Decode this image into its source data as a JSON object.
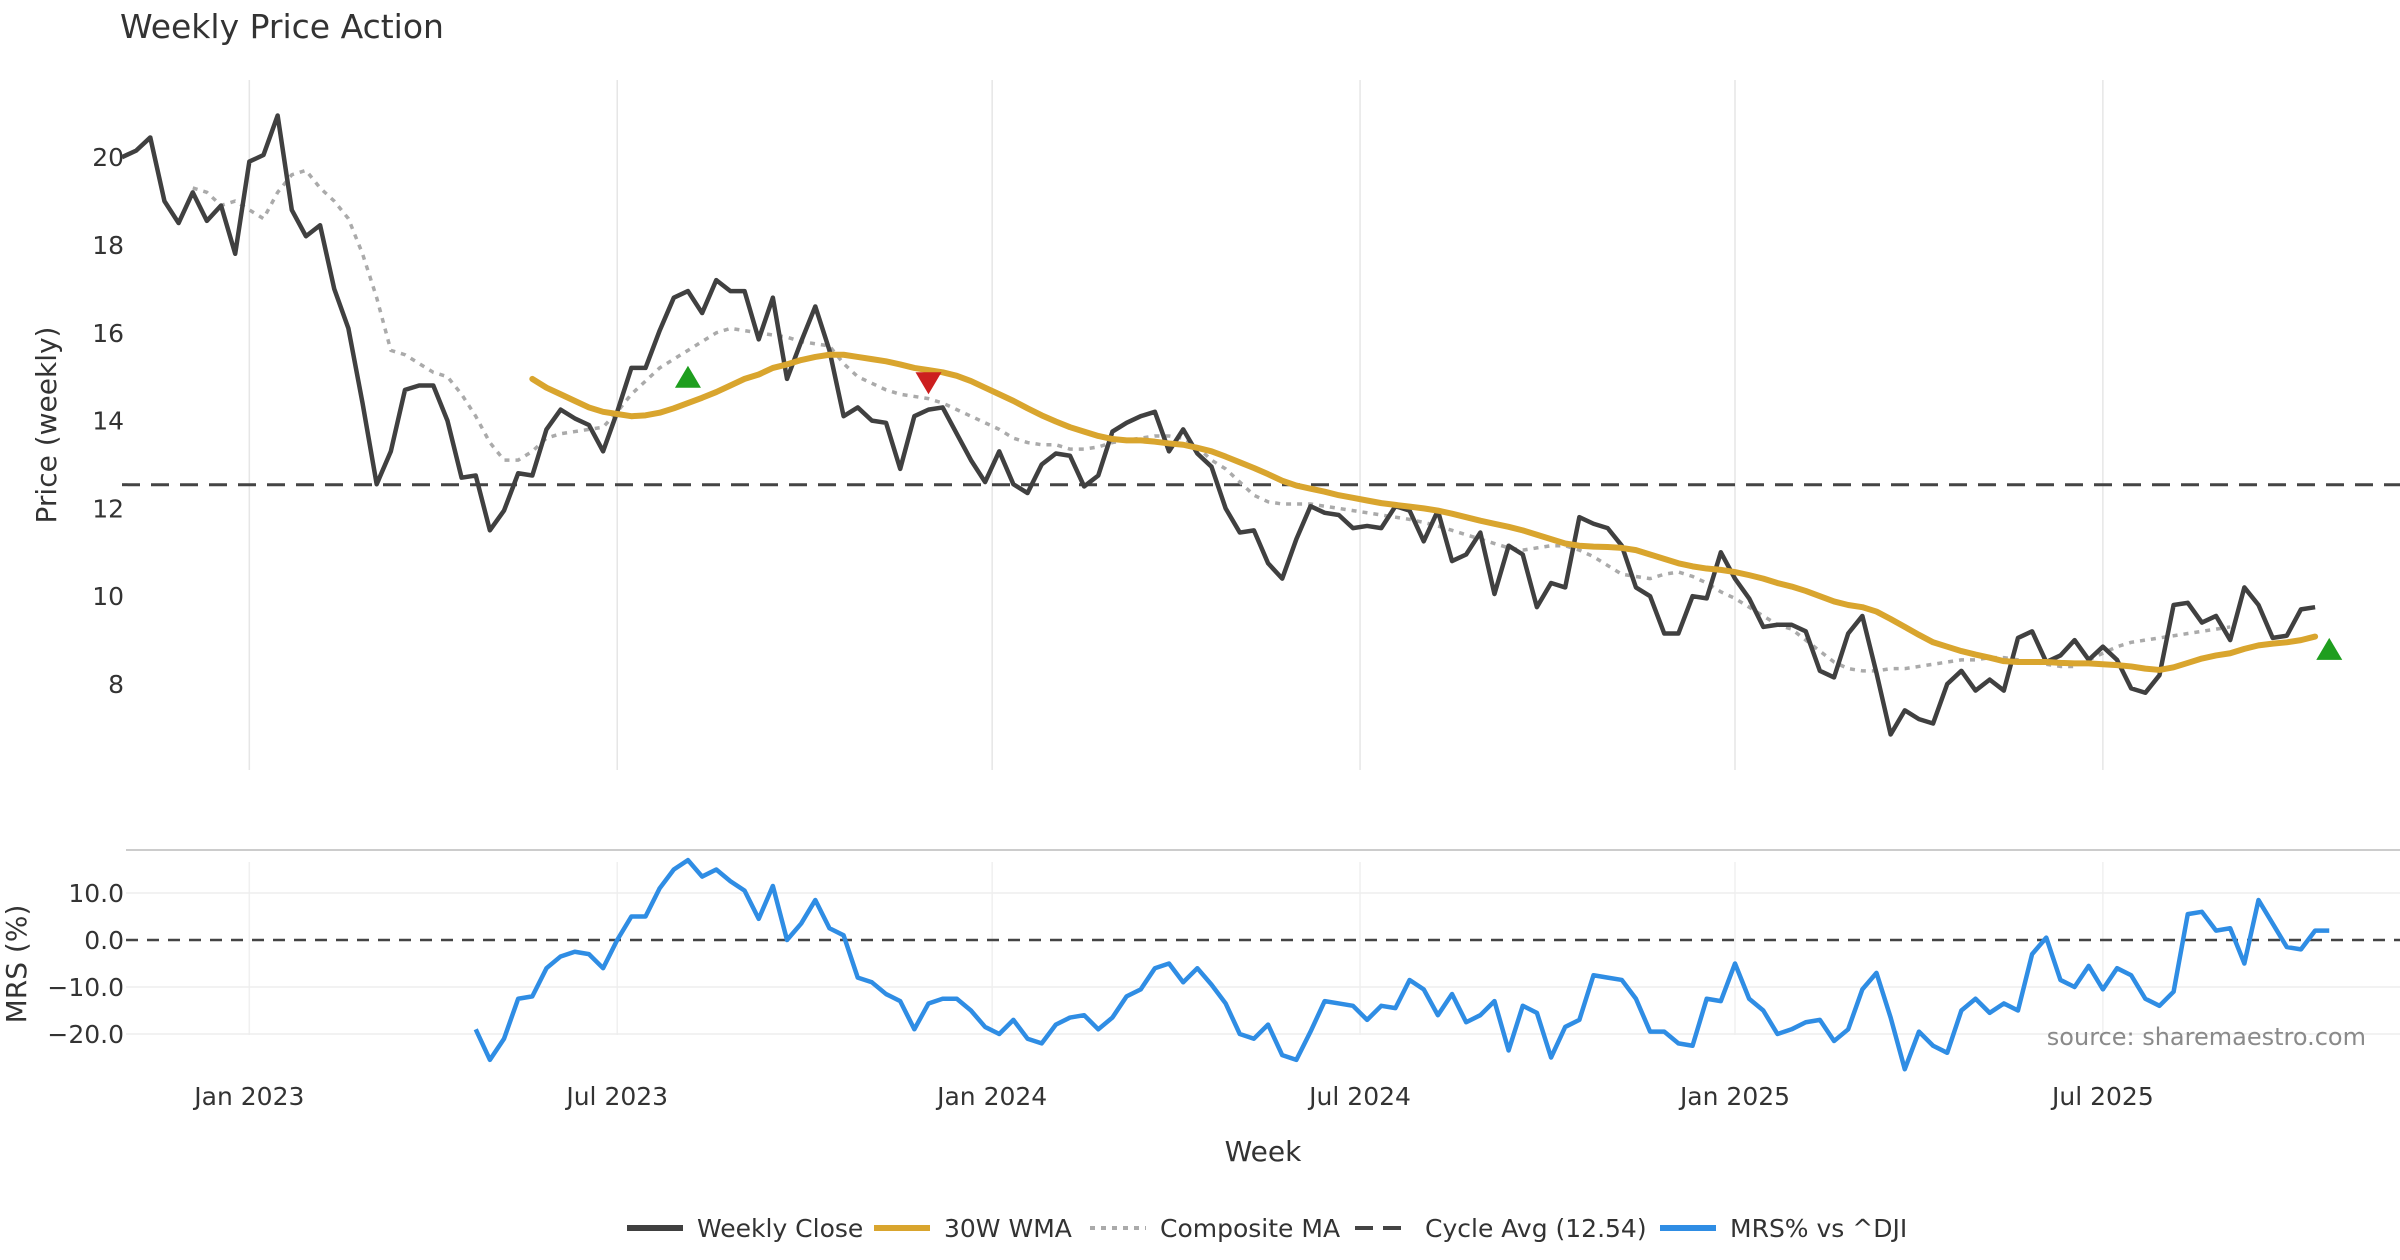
{
  "chart_data": [
    {
      "type": "line",
      "title": "Weekly Price Action",
      "ylabel": "Price (weekly)",
      "xlabel": "",
      "ylim": [
        6,
        22
      ],
      "yticks": [
        8,
        10,
        12,
        14,
        16,
        18,
        20
      ],
      "grid": "vertical",
      "series": [
        {
          "name": "Weekly Close",
          "color": "#404040",
          "start_week": 0,
          "values": [
            20.0,
            20.15,
            20.45,
            19.0,
            18.5,
            19.2,
            18.55,
            18.9,
            17.8,
            19.9,
            20.05,
            20.95,
            18.8,
            18.2,
            18.45,
            17.0,
            16.1,
            14.4,
            12.55,
            13.3,
            14.7,
            14.8,
            14.8,
            14.0,
            12.7,
            12.75,
            11.5,
            11.95,
            12.8,
            12.75,
            13.8,
            14.25,
            14.05,
            13.9,
            13.3,
            14.2,
            15.2,
            15.2,
            16.05,
            16.8,
            16.95,
            16.45,
            17.2,
            16.95,
            16.95,
            15.85,
            16.8,
            14.95,
            15.8,
            16.6,
            15.6,
            14.1,
            14.3,
            14.0,
            13.95,
            12.9,
            14.1,
            14.25,
            14.3,
            13.7,
            13.1,
            12.6,
            13.3,
            12.55,
            12.35,
            13.0,
            13.25,
            13.2,
            12.5,
            12.75,
            13.75,
            13.95,
            14.1,
            14.2,
            13.3,
            13.8,
            13.25,
            12.95,
            12.0,
            11.45,
            11.5,
            10.75,
            10.4,
            11.3,
            12.05,
            11.9,
            11.85,
            11.55,
            11.6,
            11.55,
            12.05,
            11.95,
            11.25,
            11.95,
            10.8,
            10.95,
            11.45,
            10.05,
            11.15,
            10.95,
            9.75,
            10.3,
            10.2,
            11.8,
            11.65,
            11.55,
            11.15,
            10.2,
            10.0,
            9.15,
            9.15,
            10.0,
            9.95,
            11.0,
            10.4,
            9.95,
            9.3,
            9.35,
            9.35,
            9.2,
            8.3,
            8.15,
            9.15,
            9.55,
            8.25,
            6.85,
            7.4,
            7.2,
            7.1,
            8.0,
            8.3,
            7.85,
            8.1,
            7.85,
            9.05,
            9.2,
            8.5,
            8.65,
            9.0,
            8.55,
            8.85,
            8.55,
            7.9,
            7.8,
            8.2,
            9.8,
            9.85,
            9.4,
            9.55,
            9.0,
            10.2,
            9.8,
            9.05,
            9.1,
            9.7,
            9.75
          ]
        },
        {
          "name": "30W WMA",
          "color": "#d9a52e",
          "start_week": 29,
          "values": [
            14.95,
            14.75,
            14.6,
            14.45,
            14.3,
            14.2,
            14.15,
            14.1,
            14.12,
            14.18,
            14.28,
            14.4,
            14.52,
            14.65,
            14.8,
            14.95,
            15.05,
            15.2,
            15.28,
            15.38,
            15.45,
            15.5,
            15.5,
            15.45,
            15.4,
            15.35,
            15.28,
            15.2,
            15.15,
            15.1,
            15.02,
            14.9,
            14.75,
            14.6,
            14.45,
            14.28,
            14.12,
            13.98,
            13.85,
            13.75,
            13.65,
            13.58,
            13.55,
            13.55,
            13.52,
            13.48,
            13.45,
            13.38,
            13.3,
            13.18,
            13.05,
            12.92,
            12.78,
            12.63,
            12.52,
            12.45,
            12.38,
            12.3,
            12.24,
            12.18,
            12.12,
            12.08,
            12.04,
            12.0,
            11.95,
            11.88,
            11.8,
            11.72,
            11.65,
            11.58,
            11.5,
            11.4,
            11.3,
            11.2,
            11.15,
            11.13,
            11.12,
            11.1,
            11.05,
            10.95,
            10.85,
            10.75,
            10.68,
            10.63,
            10.6,
            10.55,
            10.48,
            10.4,
            10.3,
            10.22,
            10.12,
            10.0,
            9.88,
            9.8,
            9.75,
            9.65,
            9.48,
            9.3,
            9.12,
            8.95,
            8.85,
            8.75,
            8.67,
            8.6,
            8.52,
            8.5,
            8.5,
            8.5,
            8.48,
            8.47,
            8.47,
            8.45,
            8.43,
            8.4,
            8.35,
            8.32,
            8.38,
            8.48,
            8.58,
            8.65,
            8.7,
            8.8,
            8.88,
            8.92,
            8.95,
            9.0,
            9.08
          ]
        },
        {
          "name": "Composite MA",
          "color": "#aaaaaa",
          "start_week": 5,
          "values": [
            19.3,
            19.2,
            18.9,
            19.0,
            18.8,
            18.6,
            19.2,
            19.6,
            19.7,
            19.3,
            19.0,
            18.6,
            17.8,
            16.8,
            15.6,
            15.5,
            15.3,
            15.1,
            15.0,
            14.6,
            14.1,
            13.5,
            13.1,
            13.1,
            13.3,
            13.6,
            13.7,
            13.75,
            13.8,
            13.85,
            14.2,
            14.6,
            14.9,
            15.2,
            15.4,
            15.6,
            15.8,
            16.0,
            16.1,
            16.05,
            16.0,
            15.95,
            15.9,
            15.8,
            15.75,
            15.7,
            15.3,
            15.0,
            14.85,
            14.7,
            14.6,
            14.55,
            14.5,
            14.4,
            14.25,
            14.1,
            13.95,
            13.8,
            13.6,
            13.5,
            13.45,
            13.45,
            13.35,
            13.35,
            13.4,
            13.5,
            13.55,
            13.6,
            13.65,
            13.65,
            13.6,
            13.4,
            13.1,
            12.9,
            12.6,
            12.3,
            12.15,
            12.1,
            12.1,
            12.1,
            12.05,
            12.0,
            11.95,
            11.9,
            11.85,
            11.8,
            11.75,
            11.68,
            11.6,
            11.5,
            11.4,
            11.3,
            11.2,
            11.1,
            11.05,
            11.1,
            11.15,
            11.15,
            11.05,
            10.9,
            10.7,
            10.5,
            10.45,
            10.4,
            10.5,
            10.55,
            10.45,
            10.3,
            10.1,
            9.95,
            9.75,
            9.55,
            9.35,
            9.25,
            9.0,
            8.75,
            8.5,
            8.35,
            8.3,
            8.3,
            8.35,
            8.35,
            8.4,
            8.45,
            8.5,
            8.55,
            8.55,
            8.6,
            8.6,
            8.55,
            8.5,
            8.45,
            8.4,
            8.4,
            8.55,
            8.7,
            8.85,
            8.95,
            9.0,
            9.05,
            9.1,
            9.15,
            9.2,
            9.25,
            9.3
          ]
        },
        {
          "name": "Cycle Avg (12.54)",
          "color": "#444444",
          "value": 12.54
        }
      ],
      "markers": [
        {
          "type": "buy",
          "week": 40,
          "value": 15.0,
          "color": "#1e9e1e"
        },
        {
          "type": "sell",
          "week": 57,
          "value": 14.85,
          "color": "#cc1f1f"
        },
        {
          "type": "buy",
          "week": 156,
          "value": 8.8,
          "color": "#1e9e1e"
        }
      ]
    },
    {
      "type": "line",
      "title": "",
      "ylabel": "MRS (%)",
      "xlabel": "Week",
      "ylim": [
        -30,
        20
      ],
      "yticks": [
        10.0,
        0.0,
        -10.0,
        -20.0
      ],
      "ytick_labels": [
        "10.0",
        "0.0",
        "−10.0",
        "−20.0"
      ],
      "reference_line": 0,
      "xticks": [
        {
          "label": "Jan 2023",
          "week": 9
        },
        {
          "label": "Jul 2023",
          "week": 35
        },
        {
          "label": "Jan 2024",
          "week": 61.5
        },
        {
          "label": "Jul 2024",
          "week": 87.5
        },
        {
          "label": "Jan 2025",
          "week": 114
        },
        {
          "label": "Jul 2025",
          "week": 140
        }
      ],
      "series": [
        {
          "name": "MRS% vs ^DJI",
          "color": "#2f8de4",
          "start_week": 25,
          "values": [
            -19.0,
            -25.5,
            -21.0,
            -12.5,
            -12.0,
            -6.0,
            -3.5,
            -2.5,
            -3.0,
            -6.0,
            0.0,
            5.0,
            5.0,
            11.0,
            15.0,
            17.0,
            13.5,
            15.0,
            12.5,
            10.5,
            4.5,
            11.5,
            0.0,
            3.5,
            8.5,
            2.5,
            1.0,
            -8.0,
            -9.0,
            -11.5,
            -13.0,
            -19.0,
            -13.5,
            -12.5,
            -12.5,
            -15.0,
            -18.5,
            -20.0,
            -17.0,
            -21.0,
            -22.0,
            -18.0,
            -16.5,
            -16.0,
            -19.0,
            -16.5,
            -12.0,
            -10.5,
            -6.0,
            -5.0,
            -9.0,
            -6.0,
            -9.5,
            -13.5,
            -20.0,
            -21.0,
            -18.0,
            -24.5,
            -25.5,
            -19.5,
            -13.0,
            -13.5,
            -14.0,
            -17.0,
            -14.0,
            -14.5,
            -8.5,
            -10.5,
            -16.0,
            -11.5,
            -17.5,
            -16.0,
            -13.0,
            -23.5,
            -14.0,
            -15.5,
            -25.0,
            -18.5,
            -17.0,
            -7.5,
            -8.0,
            -8.5,
            -12.5,
            -19.5,
            -19.5,
            -22.0,
            -22.5,
            -12.5,
            -13.0,
            -5.0,
            -12.5,
            -15.0,
            -20.0,
            -19.0,
            -17.5,
            -17.0,
            -21.5,
            -19.0,
            -10.5,
            -7.0,
            -16.5,
            -27.5,
            -19.5,
            -22.5,
            -24.0,
            -15.0,
            -12.5,
            -15.5,
            -13.5,
            -15.0,
            -3.0,
            0.5,
            -8.5,
            -10.0,
            -5.5,
            -10.5,
            -6.0,
            -7.5,
            -12.5,
            -14.0,
            -11.0,
            5.5,
            6.0,
            2.0,
            2.5,
            -5.0,
            8.5,
            3.5,
            -1.5,
            -2.0,
            2.0,
            2.0
          ]
        }
      ]
    }
  ],
  "weeks_total": 162,
  "source_note": "source: sharemaestro.com",
  "legend": [
    {
      "label": "Weekly Close",
      "style": "solid",
      "color": "#404040"
    },
    {
      "label": "30W WMA",
      "style": "solid",
      "color": "#d9a52e"
    },
    {
      "label": "Composite MA",
      "style": "dotted",
      "color": "#aaaaaa"
    },
    {
      "label": "Cycle Avg (12.54)",
      "style": "dashed",
      "color": "#444444"
    },
    {
      "label": "MRS% vs ^DJI",
      "style": "solid",
      "color": "#2f8de4"
    }
  ]
}
